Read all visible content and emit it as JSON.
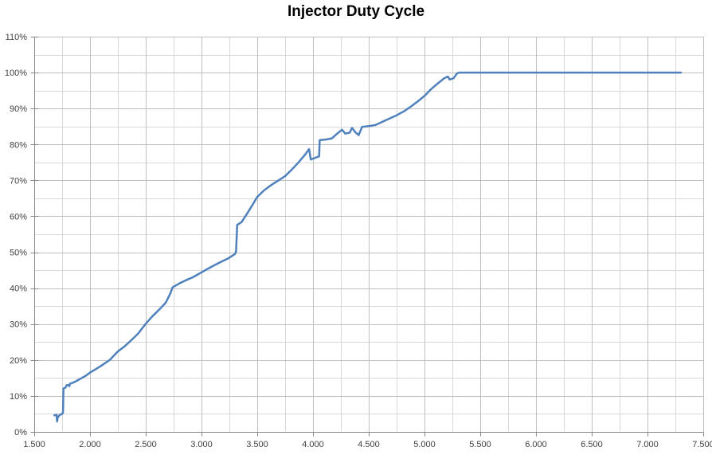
{
  "title": "Injector Duty Cycle",
  "colors": {
    "series_line": "#4F81BD",
    "minor_gridline": "#D9D9D9",
    "major_gridline": "#BFBFBF",
    "axis_line": "#898989",
    "tick_label": "#3f3f3f",
    "title_text": "#000000",
    "background": "#FFFFFF"
  },
  "chart_data": {
    "type": "line",
    "title": "Injector Duty Cycle",
    "xlabel": "",
    "ylabel": "",
    "legend": "none",
    "grid": "major+minor",
    "x_axis": {
      "min": 1.5,
      "max": 7.5,
      "major_step": 0.5,
      "minor_step": 0.25,
      "tick_labels": [
        "1.500",
        "2.000",
        "2.500",
        "3.000",
        "3.500",
        "4.000",
        "4.500",
        "5.000",
        "5.500",
        "6.000",
        "6.500",
        "7.000",
        "7.500"
      ]
    },
    "y_axis": {
      "min": 0,
      "max": 110,
      "major_step": 10,
      "minor_step": 5,
      "tick_labels": [
        "0%",
        "10%",
        "20%",
        "30%",
        "40%",
        "50%",
        "60%",
        "70%",
        "80%",
        "90%",
        "100%",
        "110%"
      ]
    },
    "series": [
      {
        "name": "Injector Duty Cycle",
        "color": "#4F81BD",
        "points": [
          [
            1.68,
            4.6
          ],
          [
            1.7,
            4.8
          ],
          [
            1.705,
            2.9
          ],
          [
            1.71,
            4.0
          ],
          [
            1.73,
            4.8
          ],
          [
            1.75,
            5.0
          ],
          [
            1.758,
            5.4
          ],
          [
            1.762,
            12.1
          ],
          [
            1.78,
            12.3
          ],
          [
            1.79,
            13.0
          ],
          [
            1.81,
            13.0
          ],
          [
            1.815,
            12.7
          ],
          [
            1.82,
            13.4
          ],
          [
            1.84,
            13.6
          ],
          [
            1.88,
            14.2
          ],
          [
            1.92,
            14.9
          ],
          [
            1.96,
            15.6
          ],
          [
            2.0,
            16.5
          ],
          [
            2.06,
            17.6
          ],
          [
            2.12,
            18.8
          ],
          [
            2.18,
            20.1
          ],
          [
            2.25,
            22.4
          ],
          [
            2.31,
            23.8
          ],
          [
            2.37,
            25.5
          ],
          [
            2.43,
            27.3
          ],
          [
            2.5,
            30.1
          ],
          [
            2.56,
            32.2
          ],
          [
            2.62,
            34.0
          ],
          [
            2.68,
            36.0
          ],
          [
            2.72,
            38.5
          ],
          [
            2.74,
            40.2
          ],
          [
            2.8,
            41.3
          ],
          [
            2.86,
            42.2
          ],
          [
            2.92,
            43.0
          ],
          [
            3.0,
            44.4
          ],
          [
            3.08,
            45.8
          ],
          [
            3.16,
            47.1
          ],
          [
            3.24,
            48.3
          ],
          [
            3.3,
            49.5
          ],
          [
            3.31,
            50.2
          ],
          [
            3.32,
            57.6
          ],
          [
            3.36,
            58.4
          ],
          [
            3.41,
            60.8
          ],
          [
            3.45,
            62.8
          ],
          [
            3.5,
            65.4
          ],
          [
            3.56,
            67.2
          ],
          [
            3.62,
            68.6
          ],
          [
            3.69,
            70.0
          ],
          [
            3.75,
            71.2
          ],
          [
            3.81,
            73.0
          ],
          [
            3.87,
            75.0
          ],
          [
            3.93,
            77.2
          ],
          [
            3.965,
            78.7
          ],
          [
            3.98,
            75.8
          ],
          [
            4.03,
            76.4
          ],
          [
            4.055,
            76.7
          ],
          [
            4.06,
            81.2
          ],
          [
            4.12,
            81.4
          ],
          [
            4.17,
            81.7
          ],
          [
            4.22,
            83.1
          ],
          [
            4.26,
            84.1
          ],
          [
            4.29,
            83.0
          ],
          [
            4.33,
            83.3
          ],
          [
            4.35,
            84.6
          ],
          [
            4.38,
            83.4
          ],
          [
            4.41,
            82.6
          ],
          [
            4.44,
            84.9
          ],
          [
            4.5,
            85.1
          ],
          [
            4.56,
            85.4
          ],
          [
            4.63,
            86.4
          ],
          [
            4.7,
            87.4
          ],
          [
            4.75,
            88.1
          ],
          [
            4.82,
            89.3
          ],
          [
            4.88,
            90.6
          ],
          [
            4.94,
            92.0
          ],
          [
            5.0,
            93.5
          ],
          [
            5.06,
            95.4
          ],
          [
            5.12,
            97.0
          ],
          [
            5.18,
            98.5
          ],
          [
            5.21,
            98.9
          ],
          [
            5.225,
            98.1
          ],
          [
            5.26,
            98.4
          ],
          [
            5.29,
            99.7
          ],
          [
            5.31,
            100
          ],
          [
            7.3,
            100
          ]
        ]
      }
    ]
  }
}
